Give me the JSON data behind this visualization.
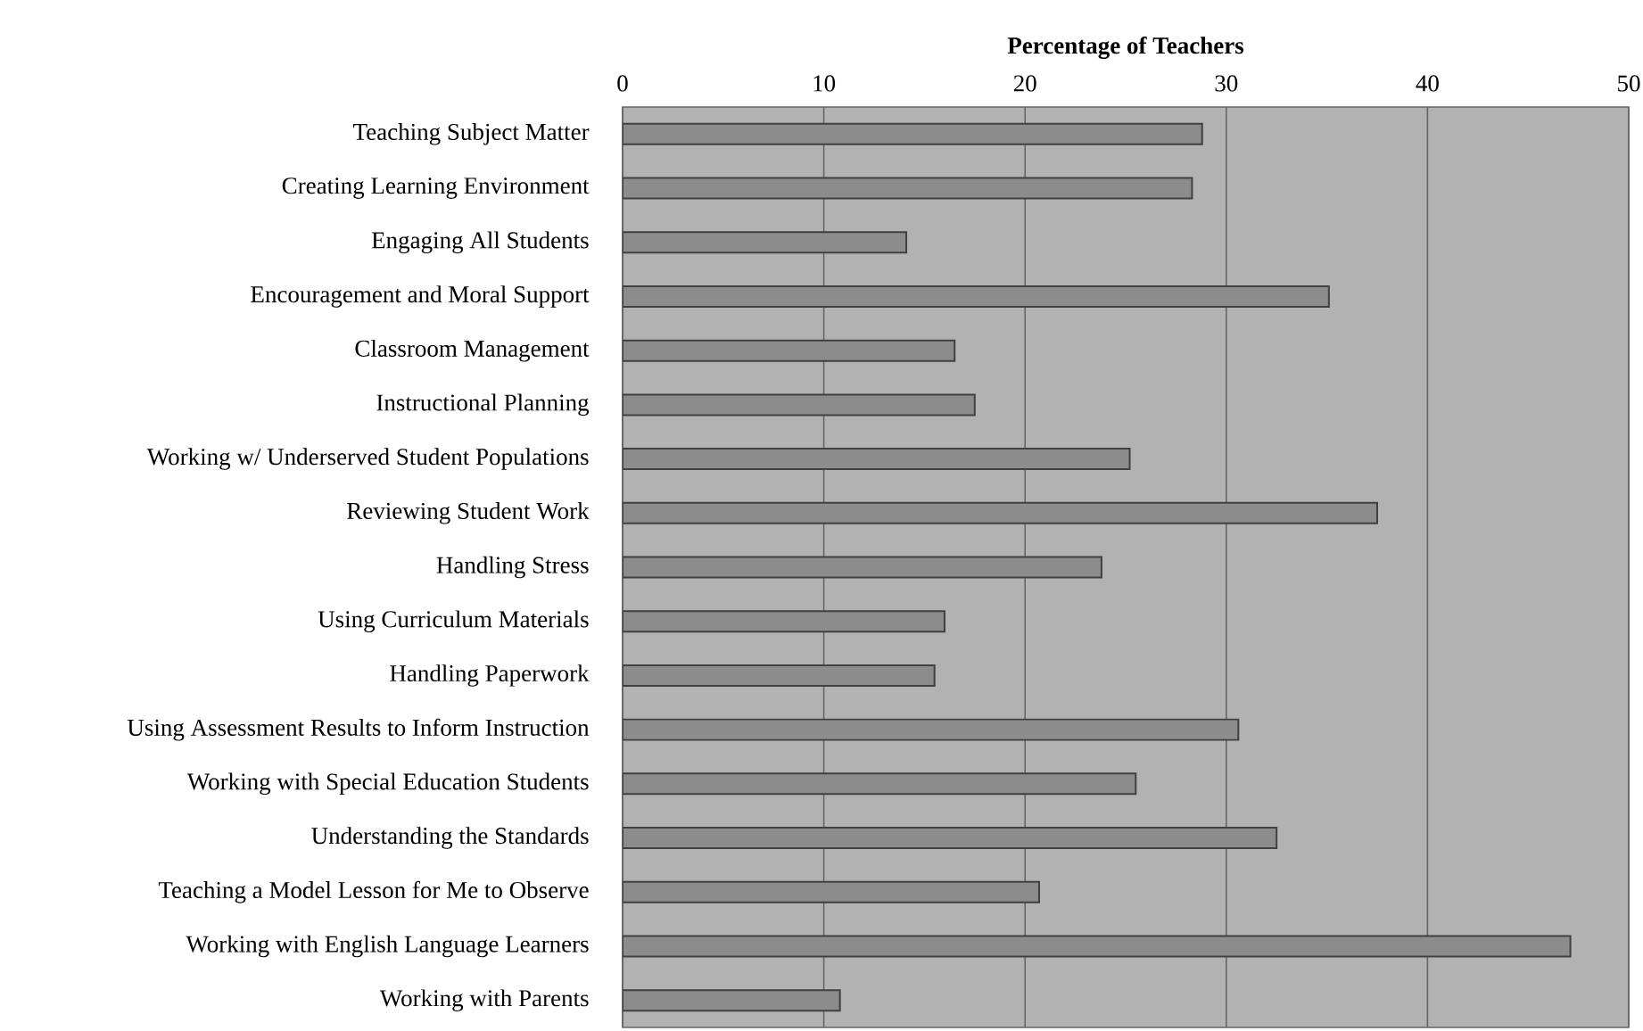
{
  "chart_data": {
    "type": "bar",
    "orientation": "horizontal",
    "xlabel": "Percentage of Teachers",
    "categories": [
      "Teaching Subject Matter",
      "Creating Learning Environment",
      "Engaging All Students",
      "Encouragement and Moral Support",
      "Classroom Management",
      "Instructional Planning",
      "Working w/ Underserved Student Populations",
      "Reviewing Student Work",
      "Handling Stress",
      "Using Curriculum Materials",
      "Handling Paperwork",
      "Using Assessment Results to Inform Instruction",
      "Working with Special Education Students",
      "Understanding the Standards",
      "Teaching a Model Lesson for Me to Observe",
      "Working with English Language Learners",
      "Working with Parents"
    ],
    "values": [
      28.8,
      28.3,
      14.1,
      35.1,
      16.5,
      17.5,
      25.2,
      37.5,
      23.8,
      16.0,
      15.5,
      30.6,
      25.5,
      32.5,
      20.7,
      47.1,
      10.8
    ],
    "color": "#8c8c8c",
    "xlim": [
      0,
      50
    ],
    "xticks": [
      0,
      10,
      20,
      30,
      40,
      50
    ],
    "grid": "x"
  }
}
